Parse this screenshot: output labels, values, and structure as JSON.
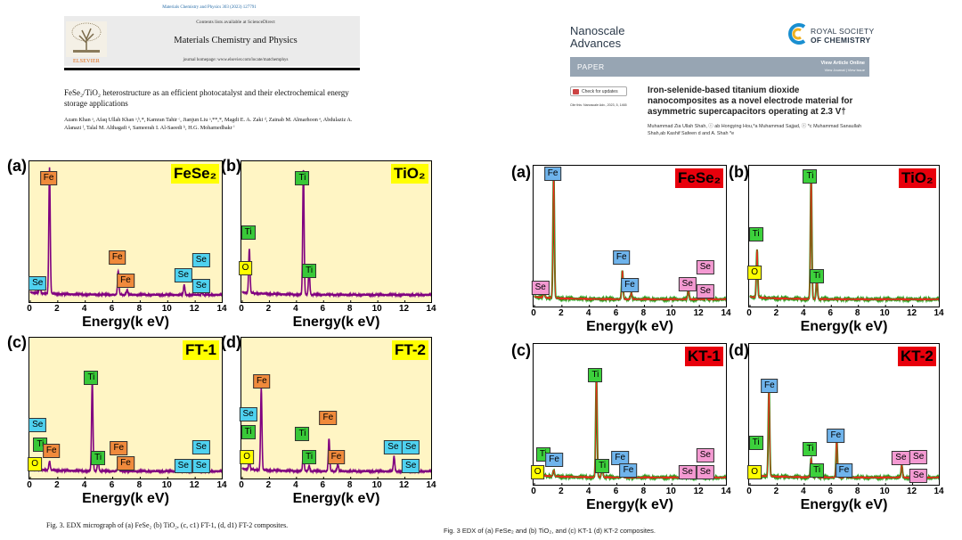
{
  "left_paper": {
    "journal_ref": "Materials Chemistry and Physics 303 (2023) 127791",
    "contents": "Contents lists available at ScienceDirect",
    "journal": "Materials Chemistry and Physics",
    "homepage": "journal homepage: www.elsevier.com/locate/matchemphys",
    "publisher": "ELSEVIER",
    "title": "FeSe₂/TiO₂ heterostructure as an efficient photocatalyst and their electrochemical energy storage applications",
    "authors": "Azam Khan ᵃ, Afaq Ullah Khan ᵃ,ᵇ,*, Kamran Tahir ᶜ, Jianjun Liu ᵃ,**,*, Magdi E. A. Zaki ᵈ, Zainab M. Almarhoon ᵉ, Abdulaziz A. Alanazi ᶠ, Talal M. Althagafi ᵍ, Sameerah I. Al-Saeedi ʰ, H.G. Mohamedbakr ⁱ",
    "caption": "Fig. 3.  EDX micrograph of (a) FeSe₂ (b) TiO₂, (c, c1) FT-1, (d, d1) FT-2 composites."
  },
  "right_paper": {
    "journal_line1": "Nanoscale",
    "journal_line2": "Advances",
    "rsc_line1": "ROYAL SOCIETY",
    "rsc_line2": "OF CHEMISTRY",
    "section": "PAPER",
    "view_article": "View Article Online",
    "view_journal": "View Journal | View Issue",
    "check_updates": "Check for updates",
    "cite": "Cite this: Nanoscale Adv., 2023, 5, 1465",
    "title": "Iron-selenide-based titanium dioxide nanocomposites as a novel electrode material for asymmetric supercapacitors operating at 2.3 V†",
    "authors": "Muhammad Zia Ullah Shah, ⓘ ab Hongying Hou,*a Muhammad Sajjad, ⓘ *c Muhammad Sanaullah Shah,ab Kashif Safeen d and A. Shah *e",
    "caption": "Fig. 3   EDX of (a) FeSe₂ and (b) TiO₂, and (c) KT-1 (d) KT-2 composites."
  },
  "colors": {
    "left_bg": "#fff5c4",
    "left_line": "#800080",
    "right_line_red": "#ff2020",
    "right_line_green": "#10a010"
  },
  "axis": {
    "xlabel": "Energy(k eV)",
    "ticks": [
      "0",
      "2",
      "4",
      "6",
      "8",
      "10",
      "12",
      "14"
    ]
  },
  "chart_data": [
    {
      "type": "line",
      "figure": "left",
      "panel": "(a)",
      "name": "FeSe₂",
      "xlabel": "Energy(k eV)",
      "xlim": [
        0,
        14
      ],
      "peaks": [
        {
          "x": 0.7,
          "h": 0.06
        },
        {
          "x": 1.4,
          "h": 1.0
        },
        {
          "x": 6.4,
          "h": 0.19
        },
        {
          "x": 7.05,
          "h": 0.04
        },
        {
          "x": 11.2,
          "h": 0.08
        },
        {
          "x": 12.5,
          "h": 0.02
        }
      ],
      "labels": [
        {
          "el": "Fe",
          "x": 1.4,
          "y": 0.93
        },
        {
          "el": "Se",
          "x": 0.6,
          "y": 0.1
        },
        {
          "el": "Fe",
          "x": 6.4,
          "y": 0.3
        },
        {
          "el": "Fe",
          "x": 7.0,
          "y": 0.12
        },
        {
          "el": "Se",
          "x": 11.2,
          "y": 0.16
        },
        {
          "el": "Se",
          "x": 12.5,
          "y": 0.28
        },
        {
          "el": "Se",
          "x": 12.5,
          "y": 0.08
        }
      ]
    },
    {
      "type": "line",
      "figure": "left",
      "panel": "(b)",
      "name": "TiO₂",
      "xlabel": "Energy(k eV)",
      "xlim": [
        0,
        14
      ],
      "peaks": [
        {
          "x": 0.52,
          "h": 0.35
        },
        {
          "x": 4.51,
          "h": 1.0
        },
        {
          "x": 4.93,
          "h": 0.2
        }
      ],
      "labels": [
        {
          "el": "Ti",
          "x": 0.5,
          "y": 0.5
        },
        {
          "el": "O",
          "x": 0.3,
          "y": 0.22
        },
        {
          "el": "Ti",
          "x": 4.5,
          "y": 0.93
        },
        {
          "el": "Ti",
          "x": 5.0,
          "y": 0.2
        }
      ]
    },
    {
      "type": "line",
      "figure": "left",
      "panel": "(c)",
      "name": "FT-1",
      "xlabel": "Energy(k eV)",
      "xlim": [
        0,
        14
      ],
      "peaks": [
        {
          "x": 0.52,
          "h": 0.05
        },
        {
          "x": 1.4,
          "h": 0.07
        },
        {
          "x": 4.51,
          "h": 0.72
        },
        {
          "x": 4.93,
          "h": 0.1
        },
        {
          "x": 6.4,
          "h": 0.06
        },
        {
          "x": 11.2,
          "h": 0.02
        }
      ],
      "labels": [
        {
          "el": "Ti",
          "x": 4.5,
          "y": 0.75
        },
        {
          "el": "Se",
          "x": 0.6,
          "y": 0.37
        },
        {
          "el": "Ti",
          "x": 0.8,
          "y": 0.22
        },
        {
          "el": "O",
          "x": 0.4,
          "y": 0.06
        },
        {
          "el": "Fe",
          "x": 1.6,
          "y": 0.17
        },
        {
          "el": "Ti",
          "x": 5.0,
          "y": 0.11
        },
        {
          "el": "Fe",
          "x": 6.5,
          "y": 0.19
        },
        {
          "el": "Fe",
          "x": 7.0,
          "y": 0.07
        },
        {
          "el": "Se",
          "x": 11.2,
          "y": 0.05
        },
        {
          "el": "Se",
          "x": 12.5,
          "y": 0.2
        },
        {
          "el": "Se",
          "x": 12.5,
          "y": 0.05
        }
      ]
    },
    {
      "type": "line",
      "figure": "left",
      "panel": "(d)",
      "name": "FT-2",
      "xlabel": "Energy(k eV)",
      "xlim": [
        0,
        14
      ],
      "peaks": [
        {
          "x": 0.52,
          "h": 0.08
        },
        {
          "x": 1.4,
          "h": 0.65
        },
        {
          "x": 4.51,
          "h": 0.15
        },
        {
          "x": 4.93,
          "h": 0.04
        },
        {
          "x": 6.4,
          "h": 0.26
        },
        {
          "x": 7.05,
          "h": 0.06
        },
        {
          "x": 11.2,
          "h": 0.12
        }
      ],
      "labels": [
        {
          "el": "Fe",
          "x": 1.5,
          "y": 0.72
        },
        {
          "el": "Se",
          "x": 0.5,
          "y": 0.46
        },
        {
          "el": "Ti",
          "x": 0.5,
          "y": 0.32
        },
        {
          "el": "O",
          "x": 0.4,
          "y": 0.12
        },
        {
          "el": "Ti",
          "x": 4.5,
          "y": 0.3
        },
        {
          "el": "Ti",
          "x": 5.0,
          "y": 0.12
        },
        {
          "el": "Fe",
          "x": 6.4,
          "y": 0.43
        },
        {
          "el": "Fe",
          "x": 7.0,
          "y": 0.12
        },
        {
          "el": "Se",
          "x": 11.2,
          "y": 0.2
        },
        {
          "el": "Se",
          "x": 12.5,
          "y": 0.2
        },
        {
          "el": "Se",
          "x": 12.5,
          "y": 0.05
        }
      ]
    },
    {
      "type": "line",
      "figure": "right",
      "panel": "(a)",
      "name": "FeSe₂",
      "xlabel": "Energy(k eV)",
      "xlim": [
        0,
        14
      ],
      "peaks": [
        {
          "x": 0.7,
          "h": 0.05
        },
        {
          "x": 1.4,
          "h": 1.0
        },
        {
          "x": 6.4,
          "h": 0.23
        },
        {
          "x": 7.05,
          "h": 0.05
        },
        {
          "x": 11.2,
          "h": 0.08
        },
        {
          "x": 12.5,
          "h": 0.02
        }
      ],
      "labels": [
        {
          "el": "Fe",
          "x": 1.4,
          "y": 1.0
        },
        {
          "el": "Se",
          "x": 0.5,
          "y": 0.1
        },
        {
          "el": "Fe",
          "x": 6.4,
          "y": 0.34
        },
        {
          "el": "Fe",
          "x": 7.0,
          "y": 0.12
        },
        {
          "el": "Se",
          "x": 11.2,
          "y": 0.13
        },
        {
          "el": "Se",
          "x": 12.5,
          "y": 0.26
        },
        {
          "el": "Se",
          "x": 12.5,
          "y": 0.07
        }
      ]
    },
    {
      "type": "line",
      "figure": "right",
      "panel": "(b)",
      "name": "TiO₂",
      "xlabel": "Energy(k eV)",
      "xlim": [
        0,
        14
      ],
      "peaks": [
        {
          "x": 0.52,
          "h": 0.38
        },
        {
          "x": 4.51,
          "h": 1.0
        },
        {
          "x": 4.93,
          "h": 0.17
        }
      ],
      "labels": [
        {
          "el": "Ti",
          "x": 0.5,
          "y": 0.52
        },
        {
          "el": "O",
          "x": 0.4,
          "y": 0.22
        },
        {
          "el": "Ti",
          "x": 4.5,
          "y": 0.98
        },
        {
          "el": "Ti",
          "x": 5.0,
          "y": 0.19
        }
      ]
    },
    {
      "type": "line",
      "figure": "right",
      "panel": "(c)",
      "name": "KT-1",
      "xlabel": "Energy(k eV)",
      "xlim": [
        0,
        14
      ],
      "peaks": [
        {
          "x": 0.52,
          "h": 0.05
        },
        {
          "x": 1.4,
          "h": 0.05
        },
        {
          "x": 4.51,
          "h": 0.82
        },
        {
          "x": 4.93,
          "h": 0.1
        },
        {
          "x": 6.4,
          "h": 0.05
        },
        {
          "x": 11.2,
          "h": 0.02
        }
      ],
      "labels": [
        {
          "el": "Ti",
          "x": 4.5,
          "y": 0.82
        },
        {
          "el": "Ti",
          "x": 0.7,
          "y": 0.19
        },
        {
          "el": "O",
          "x": 0.3,
          "y": 0.05
        },
        {
          "el": "Fe",
          "x": 1.5,
          "y": 0.15
        },
        {
          "el": "Ti",
          "x": 5.0,
          "y": 0.1
        },
        {
          "el": "Fe",
          "x": 6.3,
          "y": 0.16
        },
        {
          "el": "Fe",
          "x": 6.9,
          "y": 0.06
        },
        {
          "el": "Se",
          "x": 11.2,
          "y": 0.05
        },
        {
          "el": "Se",
          "x": 12.5,
          "y": 0.18
        },
        {
          "el": "Se",
          "x": 12.5,
          "y": 0.05
        }
      ]
    },
    {
      "type": "line",
      "figure": "right",
      "panel": "(d)",
      "name": "KT-2",
      "xlabel": "Energy(k eV)",
      "xlim": [
        0,
        14
      ],
      "peaks": [
        {
          "x": 0.52,
          "h": 0.05
        },
        {
          "x": 1.4,
          "h": 0.7
        },
        {
          "x": 4.51,
          "h": 0.15
        },
        {
          "x": 4.93,
          "h": 0.05
        },
        {
          "x": 6.4,
          "h": 0.3
        },
        {
          "x": 7.05,
          "h": 0.06
        },
        {
          "x": 11.2,
          "h": 0.1
        }
      ],
      "labels": [
        {
          "el": "Fe",
          "x": 1.5,
          "y": 0.73
        },
        {
          "el": "Ti",
          "x": 0.5,
          "y": 0.28
        },
        {
          "el": "O",
          "x": 0.4,
          "y": 0.05
        },
        {
          "el": "Ti",
          "x": 4.5,
          "y": 0.23
        },
        {
          "el": "Ti",
          "x": 5.0,
          "y": 0.06
        },
        {
          "el": "Fe",
          "x": 6.4,
          "y": 0.34
        },
        {
          "el": "Fe",
          "x": 7.0,
          "y": 0.06
        },
        {
          "el": "Se",
          "x": 11.2,
          "y": 0.16
        },
        {
          "el": "Se",
          "x": 12.5,
          "y": 0.17
        },
        {
          "el": "Se",
          "x": 12.5,
          "y": 0.02
        }
      ]
    }
  ]
}
